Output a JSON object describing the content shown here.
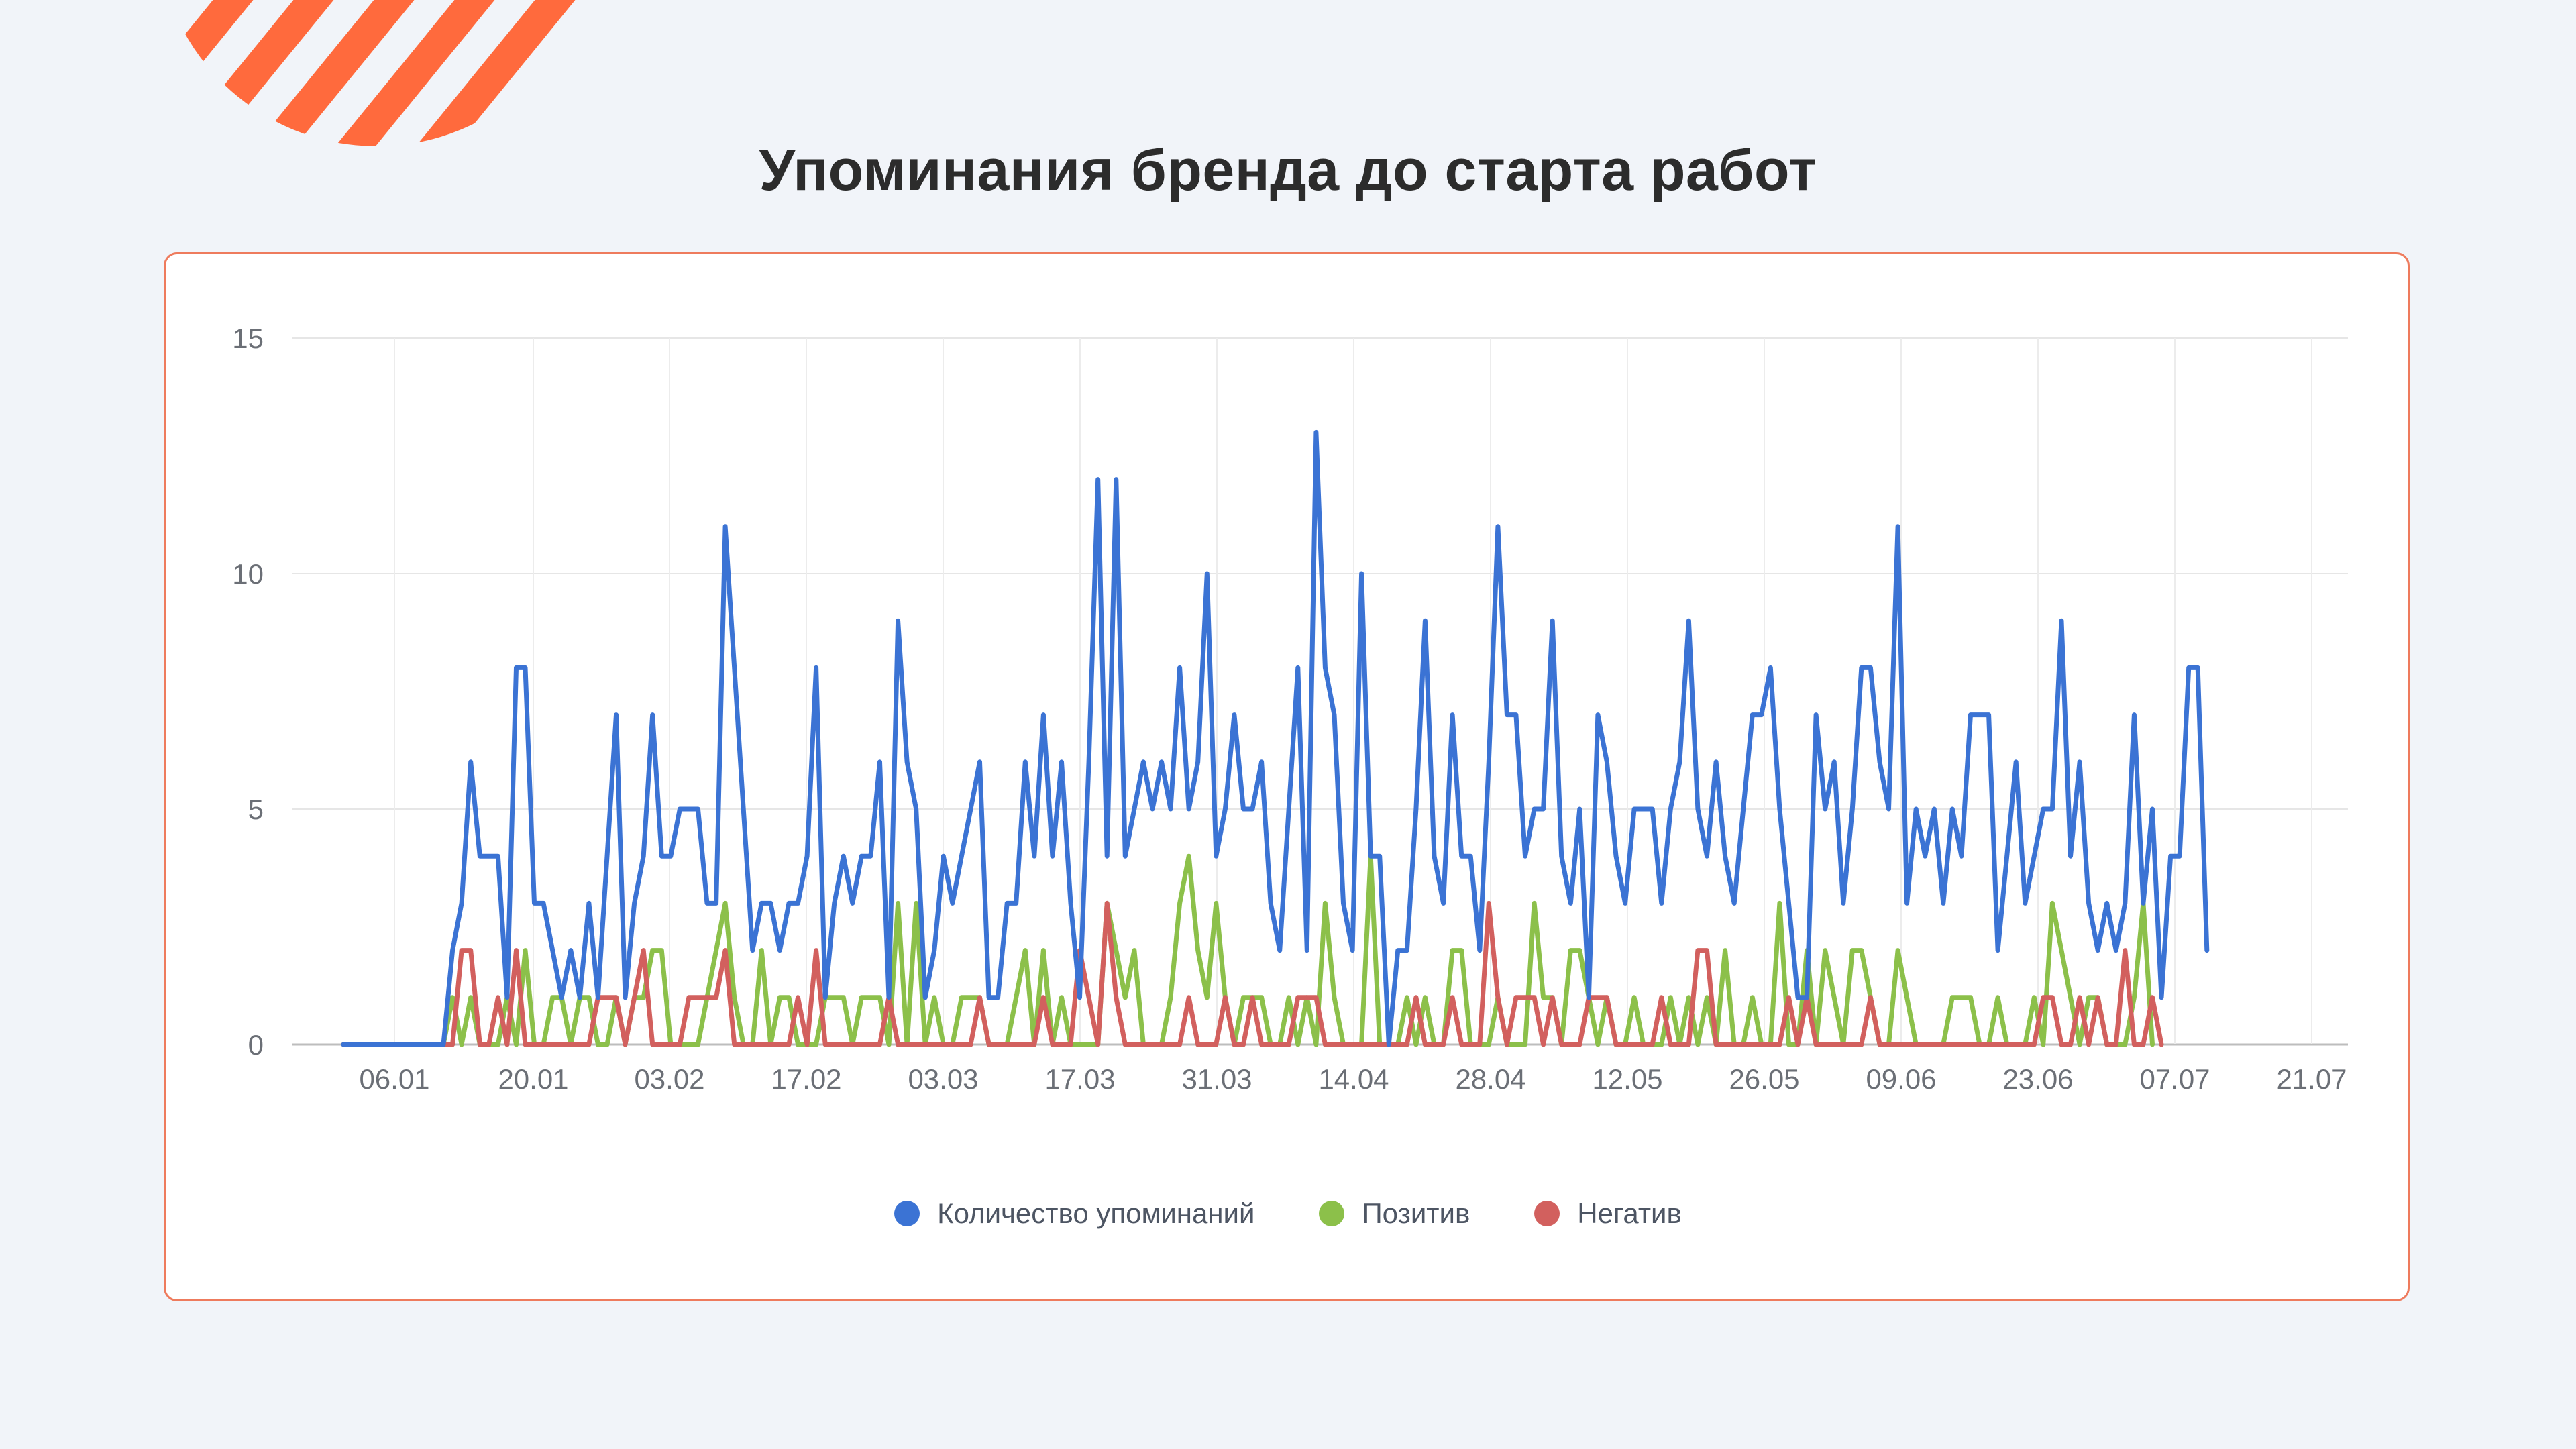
{
  "page": {
    "title": "Упоминания бренда до старта работ",
    "accent_color": "#ff6a3d",
    "card_border_color": "#ee7b5d"
  },
  "chart_data": {
    "type": "line",
    "title": "",
    "xlabel": "",
    "ylabel": "",
    "ylim": [
      0,
      15
    ],
    "yticks": [
      0,
      5,
      10,
      15
    ],
    "grid": true,
    "legend_position": "bottom",
    "x_tick_labels": [
      "06.01",
      "20.01",
      "03.02",
      "17.02",
      "03.03",
      "17.03",
      "31.03",
      "14.04",
      "28.04",
      "12.05",
      "26.05",
      "09.06",
      "23.06",
      "07.07",
      "21.07"
    ],
    "x_range_days": [
      0,
      199
    ],
    "series": [
      {
        "name": "Количество упоминаний",
        "color": "#3b73d4",
        "values": [
          0,
          0,
          0,
          0,
          0,
          0,
          0,
          0,
          0,
          0,
          0,
          0,
          2,
          3,
          6,
          4,
          4,
          4,
          1,
          8,
          8,
          3,
          3,
          2,
          1,
          2,
          1,
          3,
          1,
          4,
          7,
          1,
          3,
          4,
          7,
          4,
          4,
          5,
          5,
          5,
          3,
          3,
          11,
          8,
          5,
          2,
          3,
          3,
          2,
          3,
          3,
          4,
          8,
          1,
          3,
          4,
          3,
          4,
          4,
          6,
          1,
          9,
          6,
          5,
          1,
          2,
          4,
          3,
          4,
          5,
          6,
          1,
          1,
          3,
          3,
          6,
          4,
          7,
          4,
          6,
          3,
          1,
          6,
          12,
          4,
          12,
          4,
          5,
          6,
          5,
          6,
          5,
          8,
          5,
          6,
          10,
          4,
          5,
          7,
          5,
          5,
          6,
          3,
          2,
          5,
          8,
          2,
          13,
          8,
          7,
          3,
          2,
          10,
          4,
          4,
          0,
          2,
          2,
          5,
          9,
          4,
          3,
          7,
          4,
          4,
          2,
          6,
          11,
          7,
          7,
          4,
          5,
          5,
          9,
          4,
          3,
          5,
          1,
          7,
          6,
          4,
          3,
          5,
          5,
          5,
          3,
          5,
          6,
          9,
          5,
          4,
          6,
          4,
          3,
          5,
          7,
          7,
          8,
          5,
          3,
          1,
          1,
          7,
          5,
          6,
          3,
          5,
          8,
          8,
          6,
          5,
          11,
          3,
          5,
          4,
          5,
          3,
          5,
          4,
          7,
          7,
          7,
          2,
          4,
          6,
          3,
          4,
          5,
          5,
          9,
          4,
          6,
          3,
          2,
          3,
          2,
          3,
          7,
          3,
          5,
          1,
          4,
          4,
          8,
          8,
          2
        ]
      },
      {
        "name": "Позитив",
        "color": "#8cc04a",
        "values": [
          0,
          0,
          0,
          0,
          0,
          0,
          0,
          0,
          0,
          0,
          0,
          0,
          1,
          0,
          1,
          0,
          0,
          0,
          1,
          0,
          2,
          0,
          0,
          1,
          1,
          0,
          1,
          1,
          0,
          0,
          1,
          0,
          1,
          1,
          2,
          2,
          0,
          0,
          0,
          0,
          1,
          2,
          3,
          1,
          0,
          0,
          2,
          0,
          1,
          1,
          0,
          0,
          0,
          1,
          1,
          1,
          0,
          1,
          1,
          1,
          0,
          3,
          0,
          3,
          0,
          1,
          0,
          0,
          1,
          1,
          1,
          0,
          0,
          0,
          1,
          2,
          0,
          2,
          0,
          1,
          0,
          0,
          0,
          0,
          3,
          2,
          1,
          2,
          0,
          0,
          0,
          1,
          3,
          4,
          2,
          1,
          3,
          1,
          0,
          1,
          1,
          1,
          0,
          0,
          1,
          0,
          1,
          0,
          3,
          1,
          0,
          0,
          0,
          4,
          0,
          0,
          0,
          1,
          0,
          1,
          0,
          0,
          2,
          2,
          0,
          0,
          0,
          1,
          0,
          0,
          0,
          3,
          1,
          1,
          0,
          2,
          2,
          1,
          0,
          1,
          0,
          0,
          1,
          0,
          0,
          0,
          1,
          0,
          1,
          0,
          1,
          0,
          2,
          0,
          0,
          1,
          0,
          0,
          3,
          0,
          0,
          2,
          0,
          2,
          1,
          0,
          2,
          2,
          1,
          0,
          0,
          2,
          1,
          0,
          0,
          0,
          0,
          1,
          1,
          1,
          0,
          0,
          1,
          0,
          0,
          0,
          1,
          0,
          3,
          2,
          1,
          0,
          1,
          1,
          0,
          0,
          0,
          1,
          3,
          0
        ]
      },
      {
        "name": "Негатив",
        "color": "#d2605e",
        "values": [
          0,
          0,
          0,
          0,
          0,
          0,
          0,
          0,
          0,
          0,
          0,
          0,
          0,
          2,
          2,
          0,
          0,
          1,
          0,
          2,
          0,
          0,
          0,
          0,
          0,
          0,
          0,
          0,
          1,
          1,
          1,
          0,
          1,
          2,
          0,
          0,
          0,
          0,
          1,
          1,
          1,
          1,
          2,
          0,
          0,
          0,
          0,
          0,
          0,
          0,
          1,
          0,
          2,
          0,
          0,
          0,
          0,
          0,
          0,
          0,
          1,
          0,
          0,
          0,
          0,
          0,
          0,
          0,
          0,
          0,
          1,
          0,
          0,
          0,
          0,
          0,
          0,
          1,
          0,
          0,
          0,
          2,
          1,
          0,
          3,
          1,
          0,
          0,
          0,
          0,
          0,
          0,
          0,
          1,
          0,
          0,
          0,
          1,
          0,
          0,
          1,
          0,
          0,
          0,
          0,
          1,
          1,
          1,
          0,
          0,
          0,
          0,
          0,
          0,
          0,
          0,
          0,
          0,
          1,
          0,
          0,
          0,
          1,
          0,
          0,
          0,
          3,
          1,
          0,
          1,
          1,
          1,
          0,
          1,
          0,
          0,
          0,
          1,
          1,
          1,
          0,
          0,
          0,
          0,
          0,
          1,
          0,
          0,
          0,
          2,
          2,
          0,
          0,
          0,
          0,
          0,
          0,
          0,
          0,
          1,
          0,
          1,
          0,
          0,
          0,
          0,
          0,
          0,
          1,
          0,
          0,
          0,
          0,
          0,
          0,
          0,
          0,
          0,
          0,
          0,
          0,
          0,
          0,
          0,
          0,
          0,
          0,
          1,
          1,
          0,
          0,
          1,
          0,
          1,
          0,
          0,
          2,
          0,
          0,
          1,
          0
        ]
      }
    ]
  }
}
